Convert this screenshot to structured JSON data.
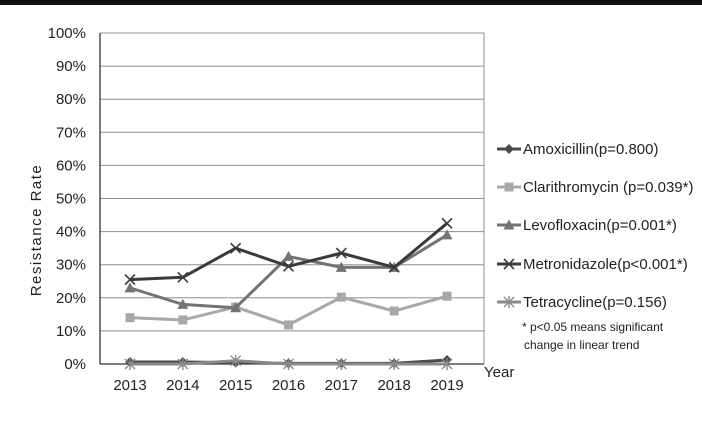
{
  "chart_data": {
    "type": "line",
    "title": "",
    "xlabel": "Year",
    "ylabel": "Resistance Rate",
    "categories": [
      "2013",
      "2014",
      "2015",
      "2016",
      "2017",
      "2018",
      "2019"
    ],
    "ylim": [
      0,
      100
    ],
    "yticks": [
      "0%",
      "10%",
      "20%",
      "30%",
      "40%",
      "50%",
      "60%",
      "70%",
      "80%",
      "90%",
      "100%"
    ],
    "grid": true,
    "legend_position": "right",
    "series": [
      {
        "name": "Amoxicillin(p=0.800)",
        "values": [
          0.6,
          0.6,
          0.4,
          0.2,
          0.2,
          0.2,
          1.2
        ],
        "color": "#4a4a4a",
        "marker": "diamond"
      },
      {
        "name": "Clarithromycin (p=0.039*)",
        "values": [
          14,
          13.3,
          17.2,
          11.8,
          20.2,
          16,
          20.5
        ],
        "color": "#a8a8a8",
        "marker": "square"
      },
      {
        "name": "Levofloxacin(p=0.001*)",
        "values": [
          23,
          18,
          17,
          32.5,
          29.2,
          29.2,
          39
        ],
        "color": "#737373",
        "marker": "triangle"
      },
      {
        "name": "Metronidazole(p<0.001*)",
        "values": [
          25.5,
          26.2,
          35,
          29.5,
          33.5,
          29.2,
          42.5
        ],
        "color": "#3a3a3a",
        "marker": "x"
      },
      {
        "name": "Tetracycline(p=0.156)",
        "values": [
          0,
          0,
          1,
          0,
          0,
          0,
          0
        ],
        "color": "#8a8a8a",
        "marker": "star"
      }
    ],
    "annotations": [
      "* p<0.05 means significant",
      "change in linear trend"
    ]
  }
}
